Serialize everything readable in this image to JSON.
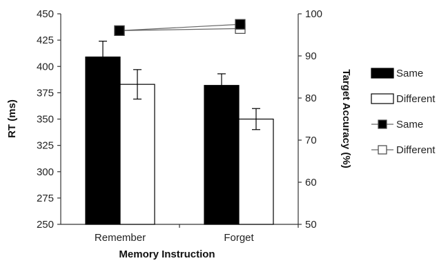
{
  "chart_data": {
    "type": "bar",
    "categories": [
      "Remember",
      "Forget"
    ],
    "xlabel": "Memory Instruction",
    "ylabel": "RT (ms)",
    "y2label": "Target Accuracy (%)",
    "ylim": [
      250,
      450
    ],
    "yticks": [
      "250",
      "275",
      "300",
      "325",
      "350",
      "375",
      "400",
      "425",
      "450"
    ],
    "y2lim": [
      50,
      100
    ],
    "y2ticks": [
      "50",
      "60",
      "70",
      "80",
      "90",
      "100"
    ],
    "grid": false,
    "legend_position": "right",
    "series": [
      {
        "name": "Same",
        "kind": "bar",
        "axis": "left",
        "values": [
          409,
          382
        ],
        "errors": [
          15,
          11
        ],
        "color": "#000000"
      },
      {
        "name": "Different",
        "kind": "bar",
        "axis": "left",
        "values": [
          383,
          350
        ],
        "errors": [
          14,
          10
        ],
        "color": "#ffffff"
      },
      {
        "name": "Same",
        "kind": "line",
        "axis": "right",
        "values": [
          96,
          97.5
        ],
        "color": "#000000"
      },
      {
        "name": "Different",
        "kind": "line",
        "axis": "right",
        "values": [
          96,
          96.5
        ],
        "color": "#ffffff"
      }
    ]
  }
}
